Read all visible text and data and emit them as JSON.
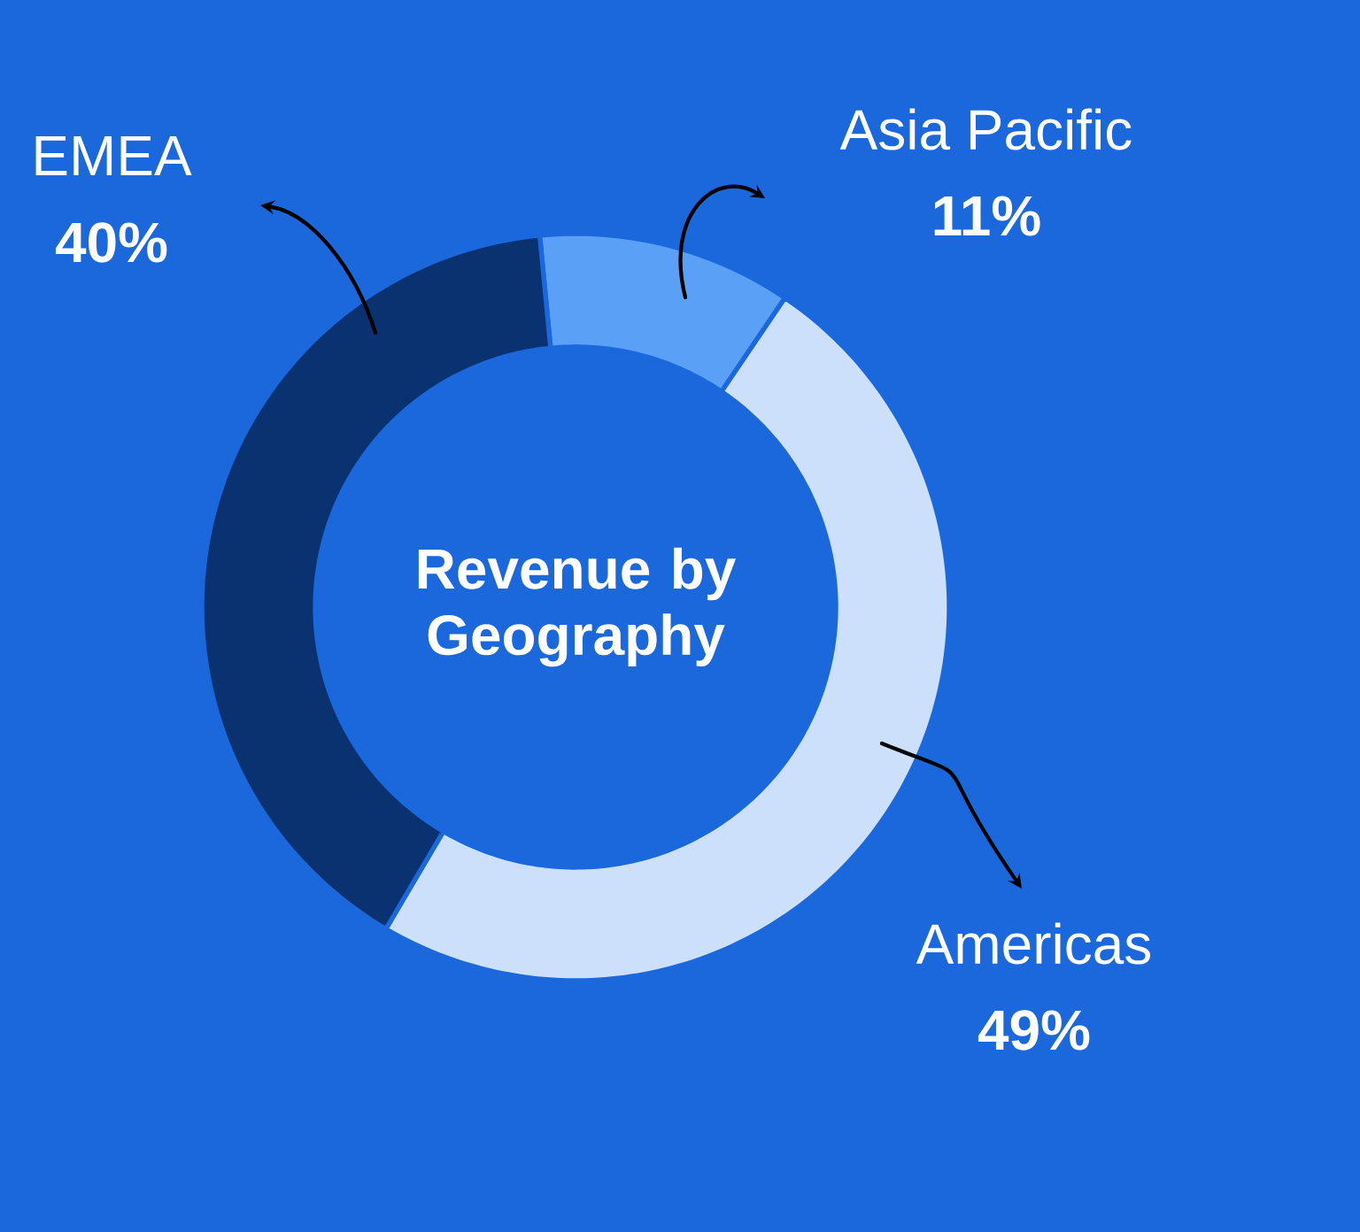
{
  "chart_data": {
    "type": "donut",
    "title": "Revenue by Geography",
    "categories": [
      "Asia Pacific",
      "Americas",
      "EMEA"
    ],
    "values": [
      11,
      49,
      40
    ],
    "colors": [
      "#5aa0f7",
      "#cce0fb",
      "#0b3270"
    ],
    "value_labels": [
      "11%",
      "49%",
      "40%"
    ]
  }
}
